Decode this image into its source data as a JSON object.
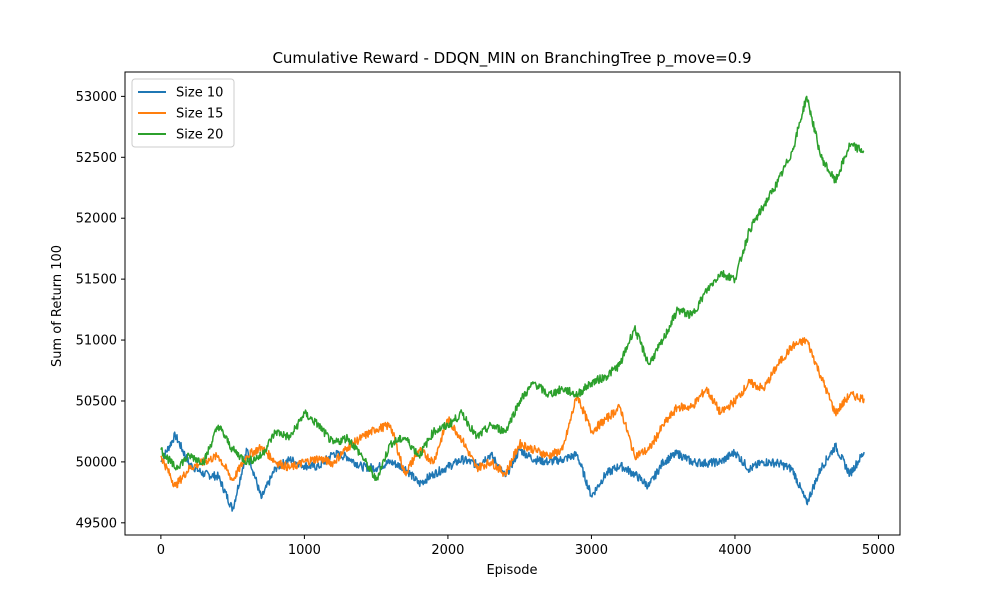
{
  "chart_data": {
    "type": "line",
    "title": "Cumulative Reward - DDQN_MIN on BranchingTree p_move=0.9",
    "xlabel": "Episode",
    "ylabel": "Sum of Return 100",
    "xlim": [
      -250,
      5150
    ],
    "ylim": [
      49400,
      53200
    ],
    "xticks": [
      0,
      1000,
      2000,
      3000,
      4000,
      5000
    ],
    "yticks": [
      49500,
      50000,
      50500,
      51000,
      51500,
      52000,
      52500,
      53000
    ],
    "grid": false,
    "legend_position": "top-left",
    "x": [
      0,
      100,
      200,
      300,
      400,
      500,
      600,
      700,
      800,
      900,
      1000,
      1100,
      1200,
      1300,
      1400,
      1500,
      1600,
      1700,
      1800,
      1900,
      2000,
      2100,
      2200,
      2300,
      2400,
      2500,
      2600,
      2700,
      2800,
      2900,
      3000,
      3100,
      3200,
      3300,
      3400,
      3500,
      3600,
      3700,
      3800,
      3900,
      4000,
      4100,
      4200,
      4300,
      4400,
      4500,
      4600,
      4700,
      4800,
      4900
    ],
    "series": [
      {
        "name": "Size 10",
        "color": "#1f77b4",
        "values": [
          50000,
          50220,
          49980,
          49900,
          49880,
          49610,
          50100,
          49700,
          49950,
          50020,
          49970,
          49960,
          50070,
          50040,
          49960,
          49950,
          50000,
          49950,
          49820,
          49900,
          49960,
          50020,
          49980,
          50060,
          49880,
          50100,
          50020,
          50000,
          50020,
          50060,
          49720,
          49900,
          49970,
          49900,
          49800,
          50000,
          50070,
          50000,
          49990,
          50000,
          50080,
          49940,
          50000,
          49990,
          49940,
          49660,
          49950,
          50130,
          49900,
          50080
        ]
      },
      {
        "name": "Size 15",
        "color": "#ff7f0e",
        "values": [
          50050,
          49800,
          49950,
          50000,
          50050,
          49850,
          50050,
          50120,
          50000,
          49950,
          50000,
          50030,
          49990,
          50120,
          50200,
          50270,
          50300,
          49900,
          50100,
          50000,
          50350,
          50180,
          49950,
          50000,
          49900,
          50150,
          50100,
          50050,
          50100,
          50550,
          50250,
          50350,
          50450,
          50050,
          50100,
          50300,
          50450,
          50450,
          50600,
          50400,
          50500,
          50650,
          50600,
          50800,
          50950,
          51000,
          50700,
          50400,
          50550,
          50520
        ]
      },
      {
        "name": "Size 20",
        "color": "#2ca02c",
        "values": [
          50100,
          49950,
          50050,
          50000,
          50300,
          50100,
          50000,
          50050,
          50250,
          50200,
          50400,
          50300,
          50150,
          50200,
          50050,
          49850,
          50150,
          50200,
          50050,
          50250,
          50300,
          50400,
          50200,
          50300,
          50250,
          50500,
          50650,
          50550,
          50600,
          50550,
          50650,
          50700,
          50800,
          51100,
          50800,
          51000,
          51250,
          51200,
          51400,
          51550,
          51500,
          51900,
          52100,
          52300,
          52550,
          53000,
          52500,
          52300,
          52600,
          52550
        ]
      }
    ]
  }
}
